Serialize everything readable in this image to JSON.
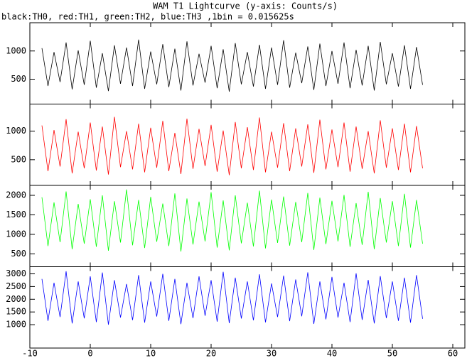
{
  "chart_data": [
    {
      "type": "line",
      "title": "WAM T1 Lightcurve (y-axis: Counts/s)",
      "subtitle": "black:TH0, red:TH1, green:TH2, blue:TH3 ,1bin = 0.015625s",
      "x": [
        -8,
        -7,
        -6,
        -5,
        -4,
        -3,
        -2,
        -1,
        0,
        1,
        2,
        3,
        4,
        5,
        6,
        7,
        8,
        9,
        10,
        11,
        12,
        13,
        14,
        15,
        16,
        17,
        18,
        19,
        20,
        21,
        22,
        23,
        24,
        25,
        26,
        27,
        28,
        29,
        30,
        31,
        32,
        33,
        34,
        35,
        36,
        37,
        38,
        39,
        40,
        41,
        42,
        43,
        44,
        45,
        46,
        47,
        48,
        49,
        50,
        51,
        52,
        53,
        54,
        55
      ],
      "values": [
        1050,
        380,
        980,
        450,
        1150,
        320,
        1010,
        400,
        1180,
        350,
        960,
        290,
        1100,
        420,
        1060,
        380,
        1200,
        330,
        990,
        410,
        1120,
        360,
        1040,
        300,
        1170,
        390,
        950,
        440,
        1090,
        340,
        1030,
        280,
        1140,
        410,
        980,
        370,
        1110,
        330,
        1060,
        400,
        1190,
        350,
        970,
        430,
        1080,
        310,
        1130,
        380,
        1000,
        420,
        1150,
        340,
        1020,
        390,
        1090,
        300,
        1160,
        410,
        960,
        370,
        1100,
        330,
        1070,
        400
      ],
      "color": "#000000",
      "xlim": [
        -10,
        62
      ],
      "ylim": [
        60,
        1500
      ],
      "yticks": [
        500,
        1000
      ]
    },
    {
      "type": "line",
      "x": [
        -8,
        -7,
        -6,
        -5,
        -4,
        -3,
        -2,
        -1,
        0,
        1,
        2,
        3,
        4,
        5,
        6,
        7,
        8,
        9,
        10,
        11,
        12,
        13,
        14,
        15,
        16,
        17,
        18,
        19,
        20,
        21,
        22,
        23,
        24,
        25,
        26,
        27,
        28,
        29,
        30,
        31,
        32,
        33,
        34,
        35,
        36,
        37,
        38,
        39,
        40,
        41,
        42,
        43,
        44,
        45,
        46,
        47,
        48,
        49,
        50,
        51,
        52,
        53,
        54,
        55
      ],
      "values": [
        1100,
        300,
        1020,
        380,
        1210,
        260,
        990,
        350,
        1150,
        310,
        1080,
        240,
        1250,
        370,
        1000,
        330,
        1130,
        280,
        1060,
        360,
        1180,
        300,
        970,
        250,
        1220,
        340,
        1040,
        390,
        1110,
        290,
        1010,
        230,
        1160,
        350,
        1070,
        320,
        1240,
        280,
        990,
        360,
        1140,
        300,
        1050,
        380,
        1120,
        270,
        1200,
        330,
        1030,
        370,
        1150,
        290,
        1080,
        340,
        1000,
        260,
        1190,
        360,
        1050,
        320,
        1130,
        280,
        1090,
        350
      ],
      "color": "#ff0000",
      "xlim": [
        -10,
        62
      ],
      "ylim": [
        50,
        1475
      ],
      "yticks": [
        500,
        1000
      ]
    },
    {
      "type": "line",
      "x": [
        -8,
        -7,
        -6,
        -5,
        -4,
        -3,
        -2,
        -1,
        0,
        1,
        2,
        3,
        4,
        5,
        6,
        7,
        8,
        9,
        10,
        11,
        12,
        13,
        14,
        15,
        16,
        17,
        18,
        19,
        20,
        21,
        22,
        23,
        24,
        25,
        26,
        27,
        28,
        29,
        30,
        31,
        32,
        33,
        34,
        35,
        36,
        37,
        38,
        39,
        40,
        41,
        42,
        43,
        44,
        45,
        46,
        47,
        48,
        49,
        50,
        51,
        52,
        53,
        54,
        55
      ],
      "values": [
        1950,
        700,
        1820,
        800,
        2100,
        620,
        1780,
        760,
        1900,
        680,
        2000,
        580,
        1850,
        790,
        2150,
        720,
        1880,
        650,
        1960,
        810,
        1790,
        700,
        2050,
        560,
        1920,
        740,
        1840,
        820,
        2080,
        660,
        1870,
        590,
        2000,
        770,
        1810,
        690,
        2120,
        640,
        1890,
        780,
        1970,
        710,
        1830,
        800,
        2060,
        600,
        1940,
        750,
        1860,
        820,
        2010,
        680,
        1800,
        730,
        2090,
        620,
        1930,
        790,
        1850,
        700,
        2040,
        660,
        1880,
        760
      ],
      "color": "#00ff00",
      "xlim": [
        -10,
        62
      ],
      "ylim": [
        170,
        2255
      ],
      "yticks": [
        500,
        1000,
        1500,
        2000
      ]
    },
    {
      "type": "line",
      "x": [
        -8,
        -7,
        -6,
        -5,
        -4,
        -3,
        -2,
        -1,
        0,
        1,
        2,
        3,
        4,
        5,
        6,
        7,
        8,
        9,
        10,
        11,
        12,
        13,
        14,
        15,
        16,
        17,
        18,
        19,
        20,
        21,
        22,
        23,
        24,
        25,
        26,
        27,
        28,
        29,
        30,
        31,
        32,
        33,
        34,
        35,
        36,
        37,
        38,
        39,
        40,
        41,
        42,
        43,
        44,
        45,
        46,
        47,
        48,
        49,
        50,
        51,
        52,
        53,
        54,
        55
      ],
      "values": [
        2800,
        1150,
        2650,
        1300,
        3100,
        1050,
        2700,
        1250,
        2900,
        1100,
        3050,
        1000,
        2750,
        1280,
        2600,
        1180,
        2950,
        1080,
        2700,
        1320,
        3000,
        1150,
        2800,
        1020,
        2650,
        1260,
        2900,
        1350,
        2750,
        1120,
        3080,
        1060,
        2850,
        1240,
        2700,
        1170,
        2980,
        1090,
        2620,
        1300,
        2930,
        1140,
        2780,
        1330,
        3060,
        1030,
        2700,
        1210,
        2880,
        1280,
        2650,
        1100,
        3020,
        1190,
        2760,
        1050,
        2910,
        1260,
        2700,
        1150,
        2850,
        1080,
        2950,
        1230
      ],
      "color": "#0000ff",
      "xlim": [
        -10,
        62
      ],
      "ylim": [
        80,
        3280
      ],
      "yticks": [
        1000,
        1500,
        2000,
        2500,
        3000
      ],
      "xticks": [
        -10,
        0,
        10,
        20,
        30,
        40,
        50,
        60
      ]
    }
  ]
}
